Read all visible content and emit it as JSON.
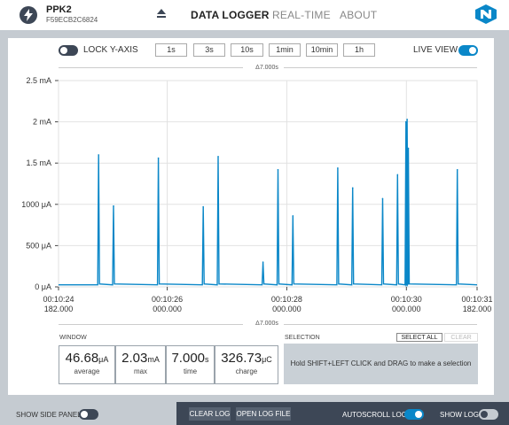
{
  "header": {
    "device_name": "PPK2",
    "device_serial": "F59ECB2C6824",
    "nav": [
      "DATA LOGGER",
      "REAL-TIME",
      "ABOUT"
    ]
  },
  "toolbar": {
    "lock_y_axis_label": "LOCK Y-AXIS",
    "lock_y_axis_on": false,
    "window_buttons": [
      "1s",
      "3s",
      "10s",
      "1min",
      "10min",
      "1h"
    ],
    "live_view_label": "LIVE VIEW",
    "live_view_on": true
  },
  "delta_top": "Δ7.000s",
  "delta_bottom": "Δ7.000s",
  "chart_data": {
    "type": "line",
    "ylabel_ticks": [
      "0 μA",
      "500 μA",
      "1000 μA",
      "1.5 mA",
      "2 mA",
      "2.5 mA"
    ],
    "ylim": [
      0,
      2500
    ],
    "unit": "μA",
    "x_ticks": [
      {
        "time": "00:10:24",
        "sub": "182.000"
      },
      {
        "time": "00:10:26",
        "sub": "000.000"
      },
      {
        "time": "00:10:28",
        "sub": "000.000"
      },
      {
        "time": "00:10:30",
        "sub": "000.000"
      },
      {
        "time": "00:10:31",
        "sub": "182.000"
      }
    ],
    "x_tick_seconds": [
      0,
      1.818,
      3.818,
      5.818,
      7.0
    ],
    "xlim": [
      0,
      7.0
    ],
    "baseline": 25,
    "spikes": [
      {
        "x": 0.67,
        "y": 1600
      },
      {
        "x": 0.92,
        "y": 980
      },
      {
        "x": 1.67,
        "y": 1560
      },
      {
        "x": 2.42,
        "y": 970
      },
      {
        "x": 2.67,
        "y": 1580
      },
      {
        "x": 3.42,
        "y": 300
      },
      {
        "x": 3.67,
        "y": 1420
      },
      {
        "x": 3.92,
        "y": 860
      },
      {
        "x": 4.67,
        "y": 1440
      },
      {
        "x": 4.92,
        "y": 1200
      },
      {
        "x": 5.42,
        "y": 1070
      },
      {
        "x": 5.67,
        "y": 1360
      },
      {
        "x": 5.81,
        "y": 2000
      },
      {
        "x": 5.83,
        "y": 2030
      },
      {
        "x": 5.85,
        "y": 1680
      },
      {
        "x": 6.67,
        "y": 1420
      }
    ],
    "grid": true,
    "line_color": "#0a87c8"
  },
  "window_stats": {
    "label": "WINDOW",
    "items": [
      {
        "value": "46.68",
        "unit": "μA",
        "name": "average"
      },
      {
        "value": "2.03",
        "unit": "mA",
        "name": "max"
      },
      {
        "value": "7.000",
        "unit": "s",
        "name": "time"
      },
      {
        "value": "326.73",
        "unit": "μC",
        "name": "charge"
      }
    ]
  },
  "selection": {
    "label": "SELECTION",
    "select_all": "SELECT ALL",
    "clear": "CLEAR",
    "hint": "Hold SHIFT+LEFT CLICK and DRAG to make a selection"
  },
  "bottom": {
    "show_side_panel": "SHOW SIDE PANEL",
    "clear_log": "CLEAR LOG",
    "open_log_file": "OPEN LOG FILE",
    "autoscroll_log": "AUTOSCROLL LOG",
    "show_log": "SHOW LOG"
  },
  "colors": {
    "accent": "#0a87c8",
    "dark": "#3d4756",
    "frame": "#c5cbd1"
  }
}
